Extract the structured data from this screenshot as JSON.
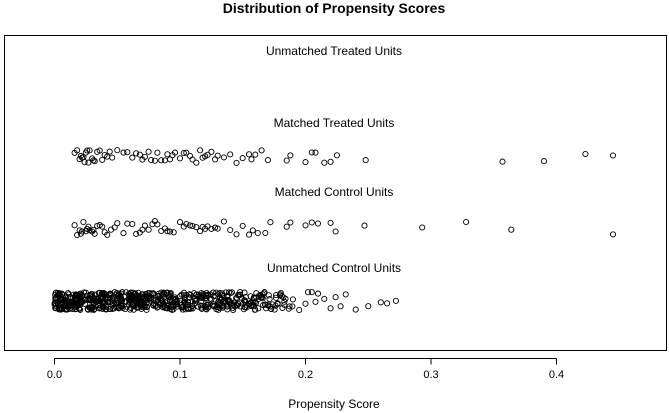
{
  "chart_data": {
    "type": "scatter",
    "title": "Distribution of Propensity Scores",
    "xlabel": "Propensity Score",
    "ylabel": "",
    "xlim": [
      -0.03,
      0.49
    ],
    "x_ticks": [
      0.0,
      0.1,
      0.2,
      0.3,
      0.4
    ],
    "x_tick_labels": [
      "0.0",
      "0.1",
      "0.2",
      "0.3",
      "0.4"
    ],
    "grid": false,
    "series": [
      {
        "name": "Unmatched Treated Units",
        "values": [],
        "jitter_seed": 1
      },
      {
        "name": "Matched Treated Units",
        "values": [
          0.016,
          0.018,
          0.02,
          0.021,
          0.022,
          0.023,
          0.024,
          0.025,
          0.026,
          0.027,
          0.028,
          0.03,
          0.031,
          0.032,
          0.034,
          0.036,
          0.038,
          0.04,
          0.042,
          0.044,
          0.046,
          0.05,
          0.055,
          0.058,
          0.062,
          0.065,
          0.068,
          0.07,
          0.072,
          0.075,
          0.077,
          0.08,
          0.082,
          0.085,
          0.088,
          0.09,
          0.092,
          0.094,
          0.096,
          0.1,
          0.103,
          0.105,
          0.108,
          0.11,
          0.113,
          0.116,
          0.118,
          0.12,
          0.122,
          0.125,
          0.128,
          0.13,
          0.135,
          0.14,
          0.145,
          0.15,
          0.155,
          0.157,
          0.16,
          0.165,
          0.17,
          0.185,
          0.188,
          0.2,
          0.205,
          0.208,
          0.215,
          0.22,
          0.225,
          0.248,
          0.357,
          0.39,
          0.423,
          0.445
        ],
        "jitter_seed": 2
      },
      {
        "name": "Matched Control Units",
        "values": [
          0.016,
          0.018,
          0.02,
          0.021,
          0.022,
          0.023,
          0.025,
          0.026,
          0.027,
          0.028,
          0.03,
          0.031,
          0.032,
          0.034,
          0.036,
          0.038,
          0.04,
          0.042,
          0.045,
          0.048,
          0.05,
          0.055,
          0.058,
          0.062,
          0.065,
          0.068,
          0.07,
          0.072,
          0.075,
          0.078,
          0.08,
          0.082,
          0.085,
          0.088,
          0.09,
          0.092,
          0.095,
          0.1,
          0.103,
          0.105,
          0.108,
          0.11,
          0.113,
          0.116,
          0.118,
          0.12,
          0.122,
          0.125,
          0.128,
          0.13,
          0.135,
          0.14,
          0.145,
          0.15,
          0.155,
          0.158,
          0.162,
          0.168,
          0.172,
          0.185,
          0.188,
          0.2,
          0.205,
          0.21,
          0.22,
          0.224,
          0.247,
          0.293,
          0.328,
          0.364,
          0.445
        ],
        "jitter_seed": 3
      },
      {
        "name": "Unmatched Control Units",
        "values": [],
        "generated": {
          "dense": [
            {
              "from": 0.0,
              "to": 0.06,
              "count": 260
            },
            {
              "from": 0.06,
              "to": 0.12,
              "count": 200
            },
            {
              "from": 0.12,
              "to": 0.16,
              "count": 110
            },
            {
              "from": 0.16,
              "to": 0.19,
              "count": 45
            }
          ],
          "sparse": [
            0.19,
            0.195,
            0.2,
            0.202,
            0.205,
            0.208,
            0.21,
            0.215,
            0.22,
            0.224,
            0.228,
            0.232,
            0.24,
            0.25,
            0.26,
            0.265,
            0.272
          ]
        },
        "jitter_seed": 4
      }
    ]
  }
}
